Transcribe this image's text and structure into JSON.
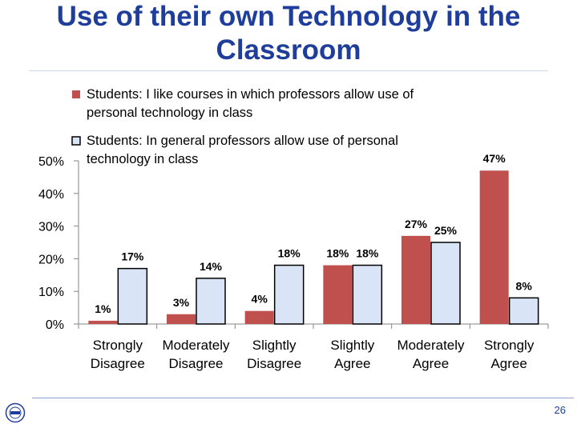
{
  "slide": {
    "title": "Use of their own Technology in the Classroom",
    "page_number": "26"
  },
  "colors": {
    "series1": "#c0504d",
    "series2": "#d9e5f6",
    "title": "#1f3e9c"
  },
  "chart_data": {
    "type": "bar",
    "categories": [
      "Strongly Disagree",
      "Moderately Disagree",
      "Slightly Disagree",
      "Slightly Agree",
      "Moderately Agree",
      "Strongly Agree"
    ],
    "series": [
      {
        "name": "Students: I like courses in which professors allow use of personal technology in class",
        "values": [
          1,
          3,
          4,
          18,
          27,
          47
        ]
      },
      {
        "name": "Students: In general professors allow use of personal technology in class",
        "values": [
          17,
          14,
          18,
          18,
          25,
          8
        ]
      }
    ],
    "data_labels": [
      [
        "1%",
        "3%",
        "4%",
        "18%",
        "27%",
        "47%"
      ],
      [
        "17%",
        "14%",
        "18%",
        "18%",
        "25%",
        "8%"
      ]
    ],
    "y_ticks": [
      "0%",
      "10%",
      "20%",
      "30%",
      "40%",
      "50%"
    ],
    "ylim": [
      0,
      50
    ],
    "legend_position": "top-left",
    "grid": false
  }
}
